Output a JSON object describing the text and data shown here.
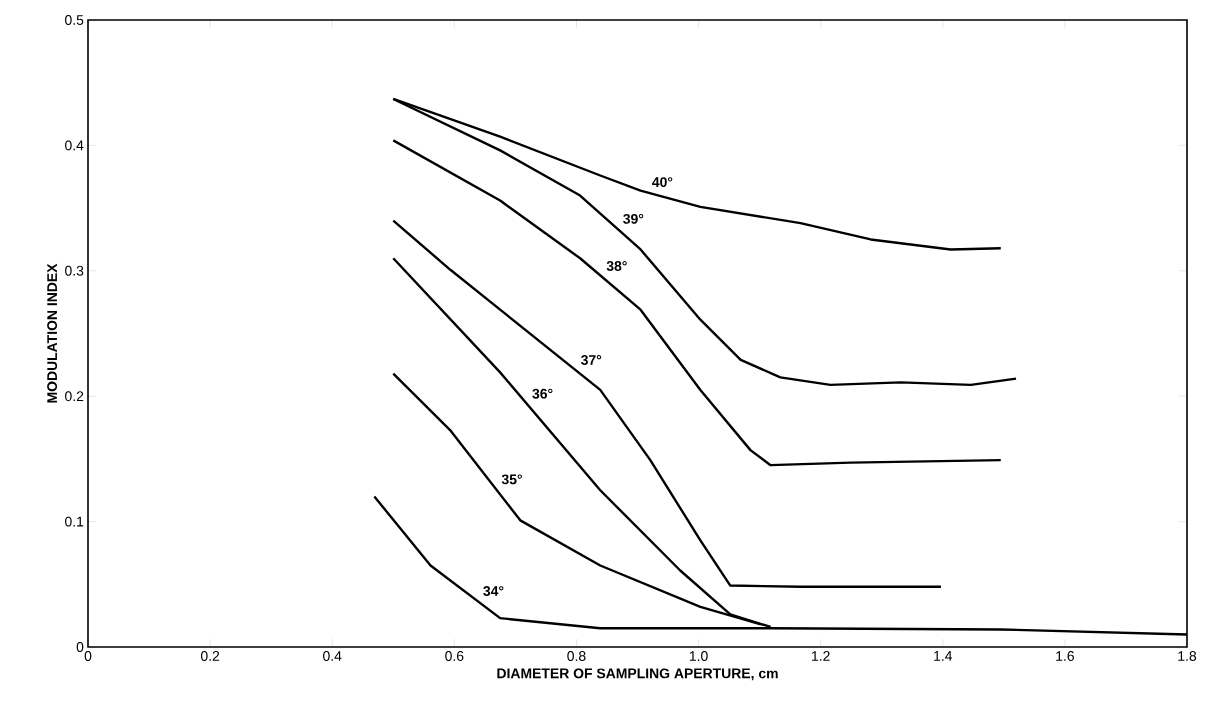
{
  "chart_data": {
    "type": "line",
    "xlabel": "DIAMETER OF SAMPLING APERTURE, cm",
    "ylabel": "MODULATION INDEX",
    "xlim": [
      0,
      1.8
    ],
    "ylim": [
      0,
      0.5
    ],
    "xticks": [
      {
        "value": 0,
        "label": "0"
      },
      {
        "value": 0.2,
        "label": "0.2"
      },
      {
        "value": 0.4,
        "label": "0.4"
      },
      {
        "value": 0.6,
        "label": "0.6"
      },
      {
        "value": 0.8,
        "label": "0.8"
      },
      {
        "value": 1.0,
        "label": "1.0"
      },
      {
        "value": 1.2,
        "label": "1.2"
      },
      {
        "value": 1.4,
        "label": "1.4"
      },
      {
        "value": 1.6,
        "label": "1.6"
      },
      {
        "value": 1.8,
        "label": "1.8"
      }
    ],
    "yticks": [
      {
        "value": 0,
        "label": "0"
      },
      {
        "value": 0.1,
        "label": "0.1"
      },
      {
        "value": 0.2,
        "label": "0.2"
      },
      {
        "value": 0.3,
        "label": "0.3"
      },
      {
        "value": 0.4,
        "label": "0.4"
      },
      {
        "value": 0.5,
        "label": "0.5"
      }
    ],
    "grid": false,
    "marker": "none",
    "line_style": "solid",
    "series": [
      {
        "name": "40°",
        "color": "#000000",
        "x": [
          0.5,
          0.675,
          0.839,
          0.905,
          1.003,
          1.167,
          1.282,
          1.413,
          1.495
        ],
        "values": [
          0.437,
          0.407,
          0.376,
          0.364,
          0.351,
          0.338,
          0.325,
          0.317,
          0.318
        ]
      },
      {
        "name": "39°",
        "color": "#000000",
        "x": [
          0.5,
          0.675,
          0.806,
          0.905,
          1.003,
          1.069,
          1.134,
          1.216,
          1.331,
          1.446,
          1.52
        ],
        "values": [
          0.437,
          0.396,
          0.36,
          0.317,
          0.261,
          0.229,
          0.215,
          0.209,
          0.211,
          0.209,
          0.214
        ]
      },
      {
        "name": "38°",
        "color": "#000000",
        "x": [
          0.5,
          0.675,
          0.806,
          0.905,
          1.003,
          1.085,
          1.118,
          1.249,
          1.495
        ],
        "values": [
          0.404,
          0.356,
          0.31,
          0.269,
          0.205,
          0.157,
          0.145,
          0.147,
          0.149
        ]
      },
      {
        "name": "37°",
        "color": "#000000",
        "x": [
          0.5,
          0.593,
          0.675,
          0.839,
          0.921,
          1.003,
          1.052,
          1.167,
          1.397
        ],
        "values": [
          0.34,
          0.301,
          0.269,
          0.205,
          0.149,
          0.085,
          0.049,
          0.048,
          0.048
        ]
      },
      {
        "name": "36°",
        "color": "#000000",
        "x": [
          0.5,
          0.675,
          0.839,
          0.97,
          1.052,
          1.118
        ],
        "values": [
          0.31,
          0.219,
          0.125,
          0.061,
          0.026,
          0.016
        ]
      },
      {
        "name": "35°",
        "color": "#000000",
        "x": [
          0.5,
          0.593,
          0.708,
          0.839,
          1.003,
          1.102
        ],
        "values": [
          0.218,
          0.173,
          0.101,
          0.065,
          0.032,
          0.018
        ]
      },
      {
        "name": "34°",
        "color": "#000000",
        "x": [
          0.469,
          0.561,
          0.675,
          0.839,
          1.118,
          1.495,
          1.8
        ],
        "values": [
          0.12,
          0.065,
          0.023,
          0.015,
          0.015,
          0.014,
          0.01
        ]
      }
    ]
  }
}
